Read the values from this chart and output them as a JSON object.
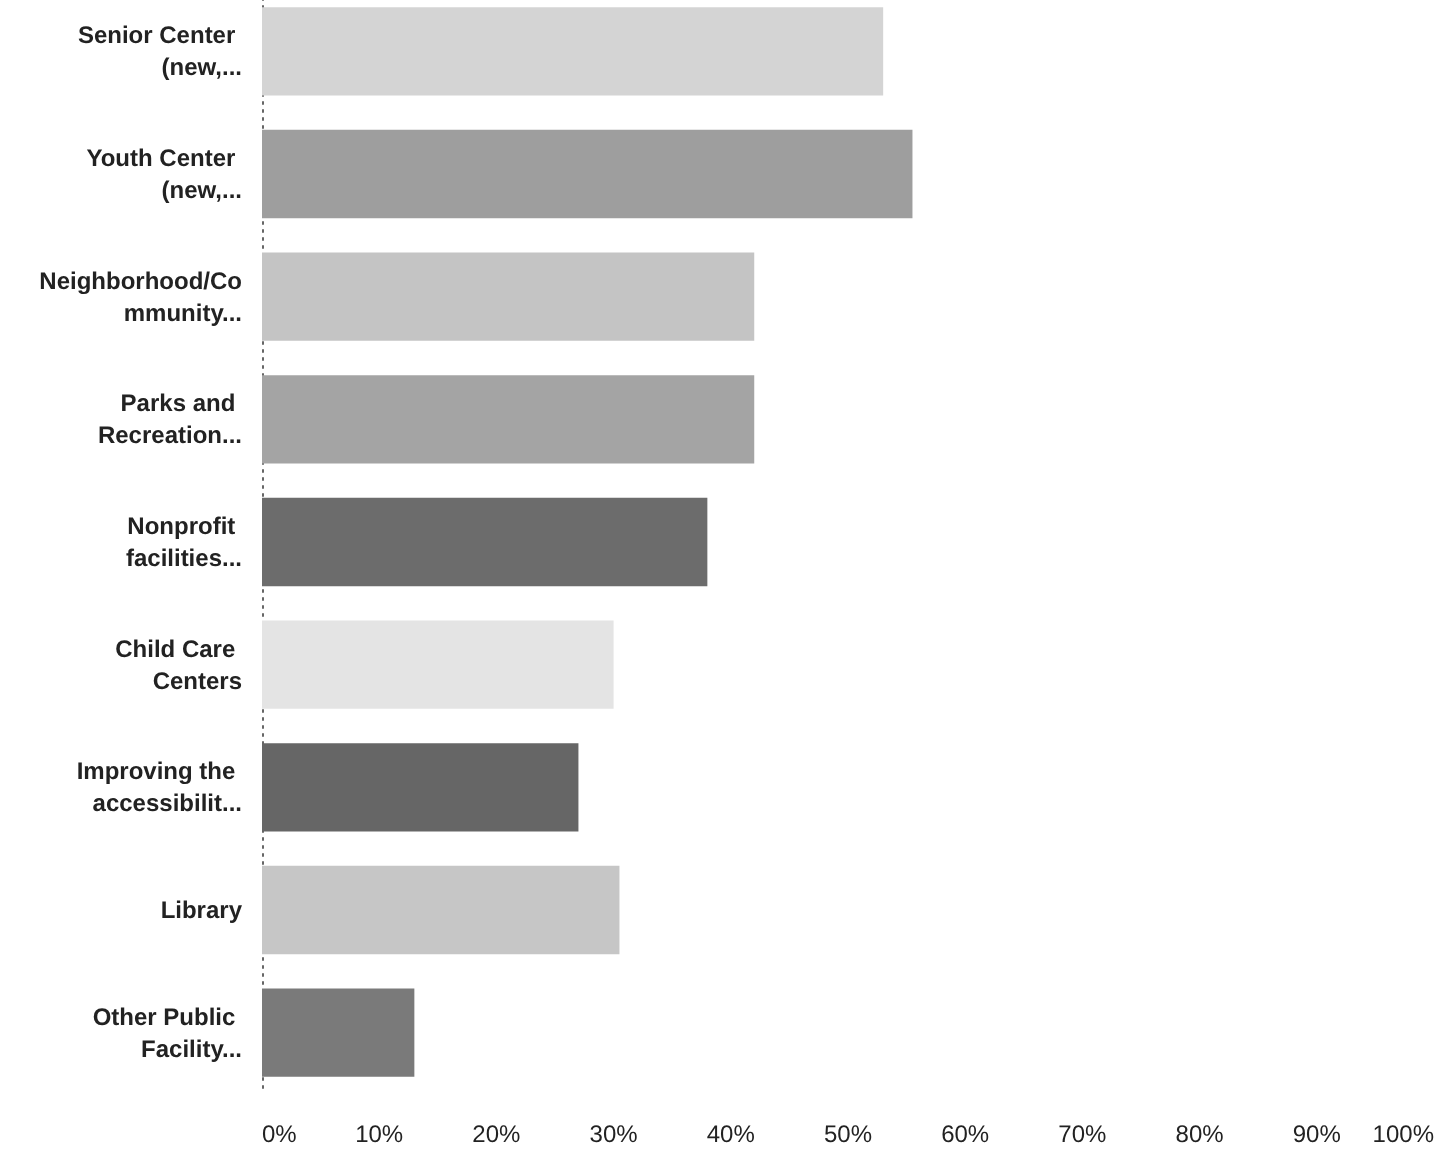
{
  "chart_data": {
    "type": "bar",
    "orientation": "horizontal",
    "categories": [
      "Senior Center (new,...",
      "Youth Center (new,...",
      "Neighborhood/Community...",
      "Parks and Recreation...",
      "Nonprofit facilities...",
      "Child Care Centers",
      "Improving the accessibilit...",
      "Library",
      "Other Public Facility..."
    ],
    "values": [
      53,
      55.5,
      42,
      42,
      38,
      30,
      27,
      30.5,
      13
    ],
    "colors": [
      "#d4d4d4",
      "#9e9e9e",
      "#c4c4c4",
      "#a4a4a4",
      "#6c6c6c",
      "#e4e4e4",
      "#666666",
      "#c6c6c6",
      "#7a7a7a"
    ],
    "xlim": [
      0,
      100
    ],
    "xticks": [
      {
        "value": 0,
        "label": "0%"
      },
      {
        "value": 10,
        "label": "10%"
      },
      {
        "value": 20,
        "label": "20%"
      },
      {
        "value": 30,
        "label": "30%"
      },
      {
        "value": 40,
        "label": "40%"
      },
      {
        "value": 50,
        "label": "50%"
      },
      {
        "value": 60,
        "label": "60%"
      },
      {
        "value": 70,
        "label": "70%"
      },
      {
        "value": 80,
        "label": "80%"
      },
      {
        "value": 90,
        "label": "90%"
      },
      {
        "value": 100,
        "label": "100%"
      }
    ]
  }
}
